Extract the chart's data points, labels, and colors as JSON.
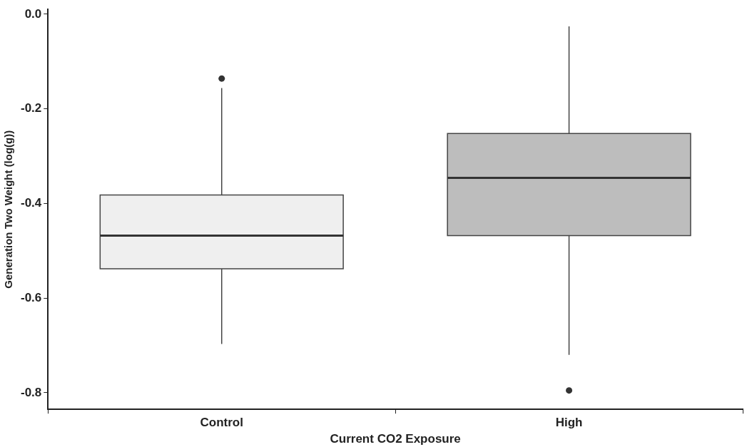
{
  "chart_data": {
    "type": "box",
    "xlabel": "Current CO2 Exposure",
    "ylabel": "Generation Two Weight (log(g))",
    "categories": [
      "Control",
      "High"
    ],
    "colors": [
      "#efefef",
      "#bdbdbd"
    ],
    "boxes": [
      {
        "low": -0.697,
        "q1": -0.538,
        "median": -0.468,
        "q3": -0.382,
        "high": -0.156,
        "outliers": [
          -0.136
        ]
      },
      {
        "low": -0.72,
        "q1": -0.468,
        "median": -0.346,
        "q3": -0.252,
        "high": -0.026,
        "outliers": [
          -0.795
        ]
      }
    ],
    "ylim": [
      -0.835,
      0.01
    ],
    "yticks": [
      -0.8,
      -0.6,
      -0.4,
      -0.2,
      {
        "value": 0,
        "label": "0.0"
      }
    ],
    "grid": false
  }
}
